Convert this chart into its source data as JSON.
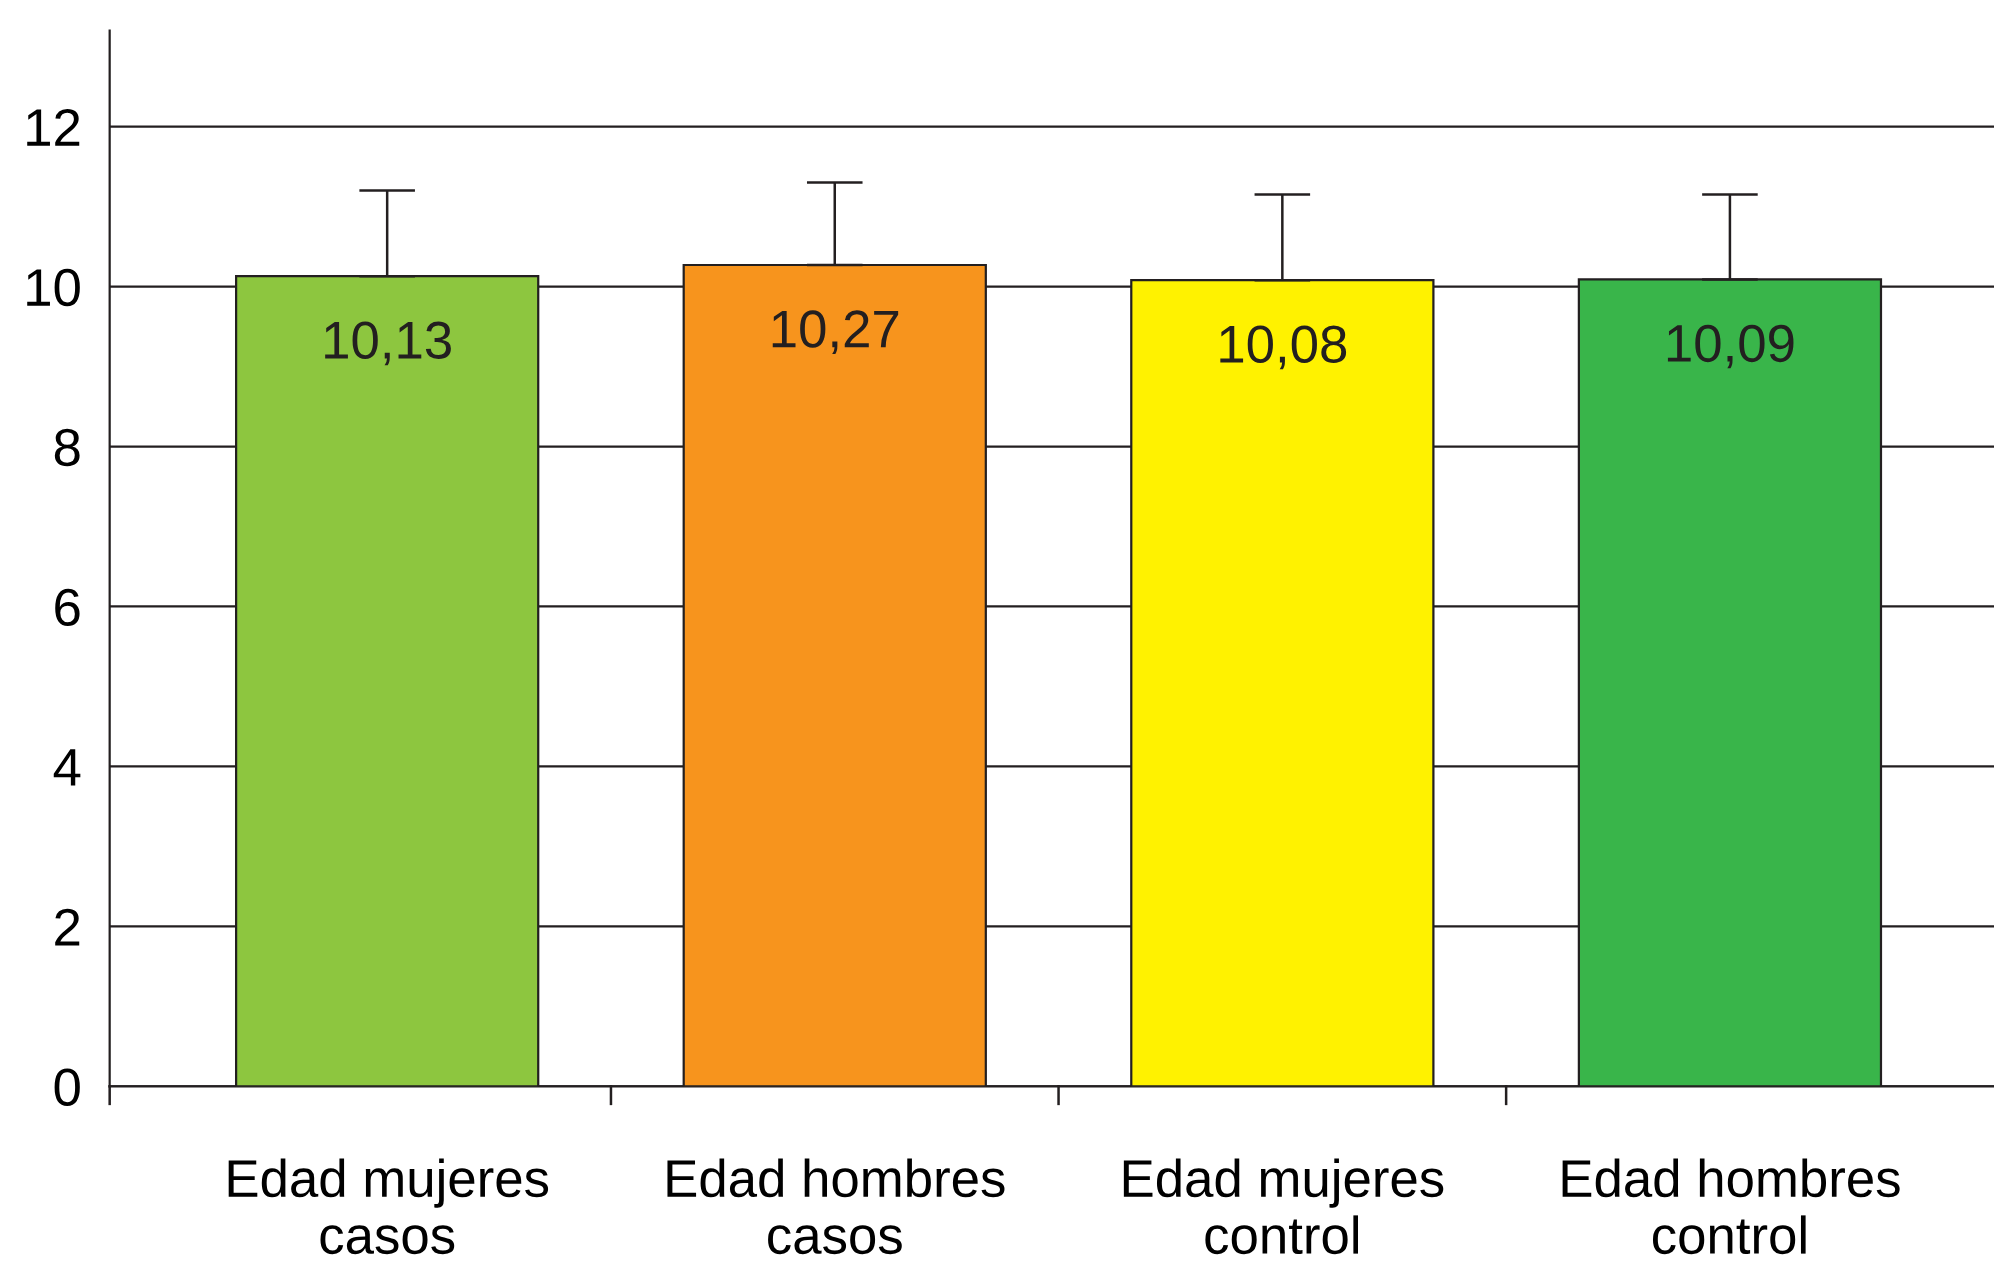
{
  "chart_data": {
    "type": "bar",
    "categories": [
      "Edad mujeres\ncasos",
      "Edad hombres\ncasos",
      "Edad mujeres\ncontrol",
      "Edad hombres\ncontrol"
    ],
    "values": [
      10.13,
      10.27,
      10.08,
      10.09
    ],
    "value_labels": [
      "10,13",
      "10,27",
      "10,08",
      "10,09"
    ],
    "colors": [
      "#8dc63f",
      "#f7941d",
      "#fff200",
      "#39b54a"
    ],
    "errors": [
      [
        10.13,
        11.2
      ],
      [
        10.27,
        11.3
      ],
      [
        10.08,
        11.15
      ],
      [
        10.09,
        11.15
      ]
    ],
    "ylim": [
      0,
      13.2
    ],
    "yticks": [
      0,
      2,
      4,
      6,
      8,
      10,
      12
    ],
    "grid": "y",
    "legend": false
  }
}
